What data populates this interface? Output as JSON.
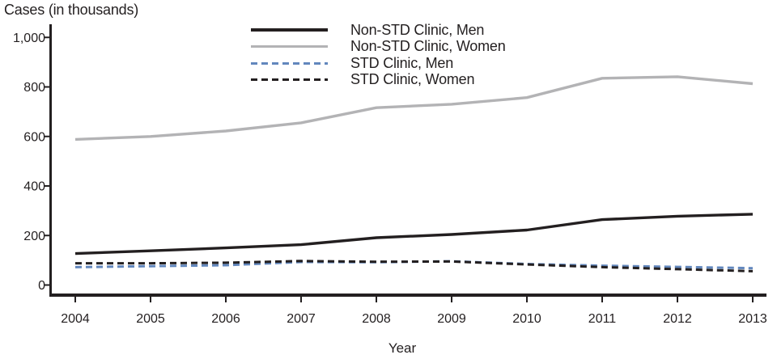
{
  "title": "Cases (in thousands)",
  "chart_data": {
    "type": "line",
    "title": "Cases (in thousands)",
    "xlabel": "Year",
    "ylabel": "Cases (in thousands)",
    "x": [
      2004,
      2005,
      2006,
      2007,
      2008,
      2009,
      2010,
      2011,
      2012,
      2013
    ],
    "x_tick_labels": [
      "2004",
      "2005",
      "2006",
      "2007",
      "2008",
      "2009",
      "2010",
      "2011",
      "2012",
      "2013"
    ],
    "ylim": [
      0,
      1000
    ],
    "yticks": [
      {
        "value": 0,
        "label": "0"
      },
      {
        "value": 200,
        "label": "200"
      },
      {
        "value": 400,
        "label": "400"
      },
      {
        "value": 600,
        "label": "600"
      },
      {
        "value": 800,
        "label": "800"
      },
      {
        "value": 1000,
        "label": "1,000"
      }
    ],
    "grid": false,
    "legend_position": "top-center-inside",
    "series": [
      {
        "name": "Non-STD Clinic, Men",
        "style": "solid",
        "color": "#231f20",
        "values": [
          127,
          138,
          150,
          163,
          191,
          204,
          222,
          264,
          278,
          286
        ]
      },
      {
        "name": "Non-STD Clinic, Women",
        "style": "solid",
        "color": "#b3b3b5",
        "values": [
          588,
          600,
          622,
          655,
          716,
          730,
          757,
          835,
          841,
          813
        ]
      },
      {
        "name": "STD Clinic, Men",
        "style": "dashed",
        "color": "#6287bd",
        "values": [
          72,
          76,
          80,
          93,
          92,
          96,
          85,
          78,
          73,
          68
        ]
      },
      {
        "name": "STD Clinic, Women",
        "style": "dashed",
        "color": "#231f20",
        "values": [
          88,
          88,
          90,
          97,
          94,
          95,
          83,
          72,
          64,
          56
        ]
      }
    ]
  }
}
